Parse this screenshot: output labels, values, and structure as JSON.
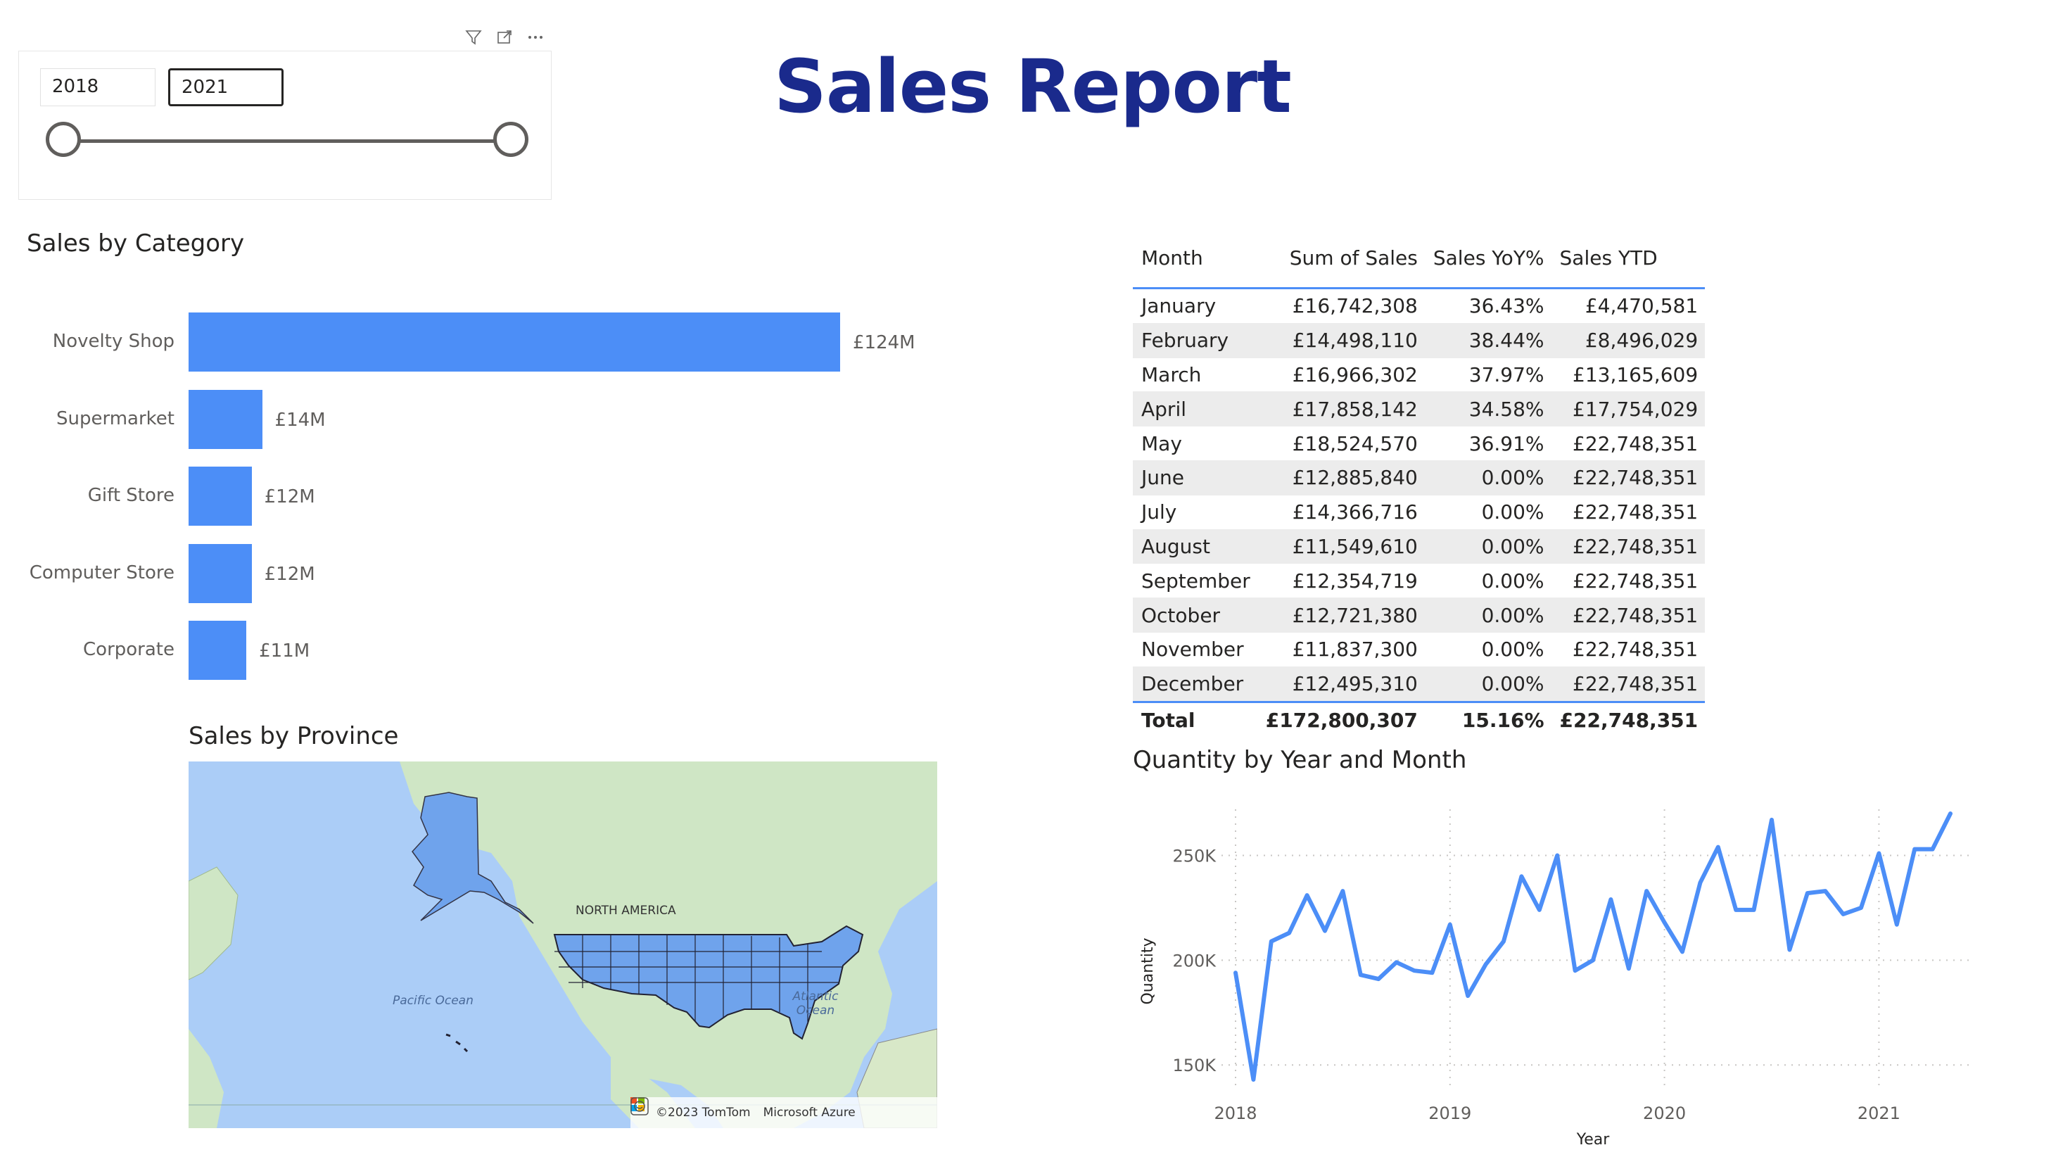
{
  "slicer": {
    "from": "2018",
    "to": "2021",
    "range": [
      2018,
      2021
    ],
    "icons": [
      "filter-icon",
      "focus-mode-icon",
      "more-options-icon"
    ]
  },
  "report": {
    "title": "Sales Report"
  },
  "category_chart": {
    "title": "Sales by Category",
    "chart_data": {
      "type": "bar",
      "orientation": "horizontal",
      "categories": [
        "Novelty Shop",
        "Supermarket",
        "Gift Store",
        "Computer Store",
        "Corporate"
      ],
      "values": [
        124,
        14,
        12,
        12,
        11
      ],
      "labels": [
        "£124M",
        "£14M",
        "£12M",
        "£12M",
        "£11M"
      ],
      "color": "#4c8ef7"
    }
  },
  "map": {
    "title": "Sales by Province",
    "labels": {
      "continent": "NORTH AMERICA",
      "pacific": "Pacific Ocean",
      "atlantic": "Atlantic Ocean"
    },
    "attribution": {
      "tomtom": "©2023 TomTom",
      "azure": "Microsoft Azure"
    },
    "highlight_color": "#6fa3ec"
  },
  "table": {
    "headers": [
      "Month",
      "Sum of Sales",
      "Sales YoY%",
      "Sales YTD"
    ],
    "rows": [
      [
        "January",
        "£16,742,308",
        "36.43%",
        "£4,470,581"
      ],
      [
        "February",
        "£14,498,110",
        "38.44%",
        "£8,496,029"
      ],
      [
        "March",
        "£16,966,302",
        "37.97%",
        "£13,165,609"
      ],
      [
        "April",
        "£17,858,142",
        "34.58%",
        "£17,754,029"
      ],
      [
        "May",
        "£18,524,570",
        "36.91%",
        "£22,748,351"
      ],
      [
        "June",
        "£12,885,840",
        "0.00%",
        "£22,748,351"
      ],
      [
        "July",
        "£14,366,716",
        "0.00%",
        "£22,748,351"
      ],
      [
        "August",
        "£11,549,610",
        "0.00%",
        "£22,748,351"
      ],
      [
        "September",
        "£12,354,719",
        "0.00%",
        "£22,748,351"
      ],
      [
        "October",
        "£12,721,380",
        "0.00%",
        "£22,748,351"
      ],
      [
        "November",
        "£11,837,300",
        "0.00%",
        "£22,748,351"
      ],
      [
        "December",
        "£12,495,310",
        "0.00%",
        "£22,748,351"
      ]
    ],
    "total": [
      "Total",
      "£172,800,307",
      "15.16%",
      "£22,748,351"
    ],
    "accent": "#4c8ef7"
  },
  "quantity_chart": {
    "title": "Quantity by Year and Month",
    "chart_data": {
      "type": "line",
      "xlabel": "Year",
      "ylabel": "Quantity",
      "x_ticks": [
        "2018",
        "2019",
        "2020",
        "2021"
      ],
      "x_range": [
        2018,
        2021.42
      ],
      "y_ticks": [
        "150K",
        "200K",
        "250K"
      ],
      "y_tick_values": [
        150000,
        200000,
        250000
      ],
      "ylim": [
        141000,
        272000
      ],
      "grid": true,
      "color": "#4c8ef7",
      "series": [
        {
          "values": [
            194000,
            143000,
            209000,
            213000,
            231000,
            214000,
            233000,
            193000,
            191000,
            199000,
            195000,
            194000,
            217000,
            183000,
            198000,
            209000,
            240000,
            224000,
            250000,
            195000,
            200000,
            229000,
            196000,
            233000,
            218000,
            204000,
            237000,
            254000,
            224000,
            224000,
            267000,
            205000,
            232000,
            233000,
            222000,
            225000,
            251000,
            217000,
            253000,
            253000,
            270000
          ]
        }
      ]
    }
  }
}
